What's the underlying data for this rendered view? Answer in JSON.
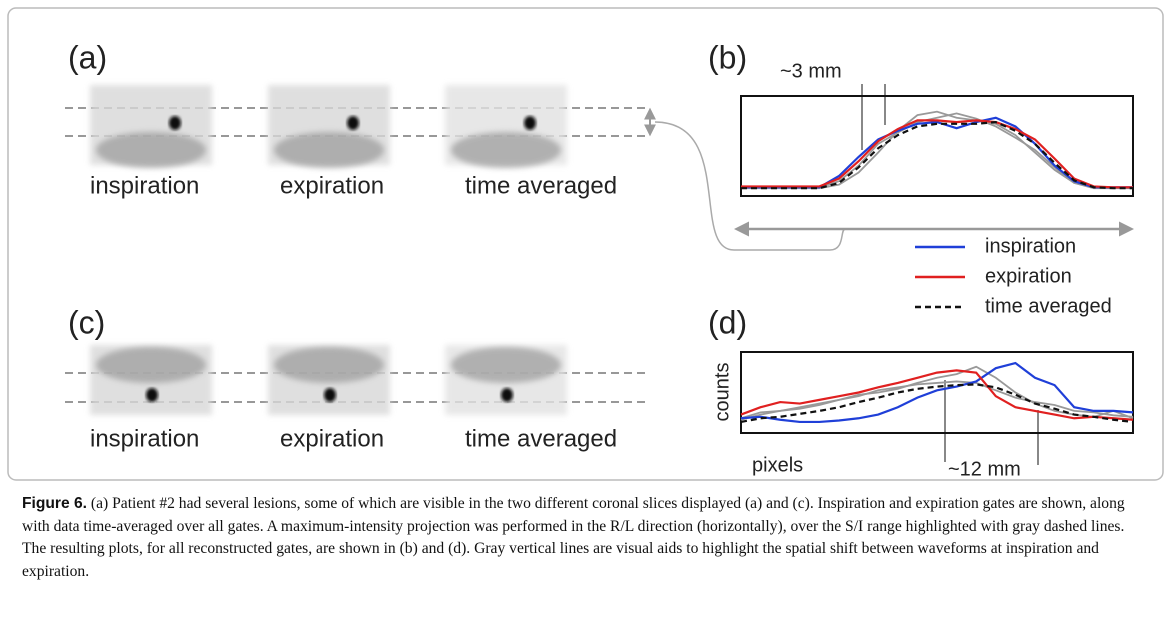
{
  "panels": [
    {
      "label": "(a)",
      "images": [
        "inspiration",
        "expiration",
        "time averaged"
      ]
    },
    {
      "label": "(c)",
      "images": [
        "inspiration",
        "expiration",
        "time averaged"
      ]
    }
  ],
  "chart_data": [
    {
      "type": "line",
      "title": "(b)",
      "annotation": "~3 mm",
      "x": [
        0,
        1,
        2,
        3,
        4,
        5,
        6,
        7,
        8,
        9,
        10,
        11,
        12,
        13,
        14,
        15,
        16,
        17,
        18,
        19,
        20
      ],
      "xlim": [
        0,
        20
      ],
      "ylim": [
        -5,
        110
      ],
      "series": [
        {
          "color": "#999999",
          "values": [
            4,
            4,
            4,
            4,
            4,
            8,
            22,
            45,
            70,
            88,
            92,
            85,
            82,
            78,
            65,
            45,
            25,
            10,
            4,
            4,
            4
          ]
        },
        {
          "color": "#999999",
          "values": [
            5,
            5,
            5,
            5,
            5,
            12,
            30,
            55,
            68,
            80,
            85,
            90,
            84,
            75,
            62,
            48,
            28,
            10,
            5,
            5,
            5
          ]
        },
        {
          "name": "inspiration",
          "color": "#1f3fd8",
          "values": [
            5,
            5,
            5,
            5,
            5,
            18,
            40,
            60,
            70,
            78,
            80,
            73,
            80,
            85,
            75,
            55,
            30,
            12,
            5,
            5,
            5
          ]
        },
        {
          "name": "expiration",
          "color": "#e02020",
          "values": [
            6,
            6,
            6,
            6,
            6,
            15,
            35,
            58,
            72,
            82,
            82,
            80,
            82,
            80,
            72,
            60,
            38,
            15,
            6,
            5,
            5
          ]
        },
        {
          "name": "time averaged",
          "color": "#111111",
          "dashed": true,
          "values": [
            4,
            4,
            4,
            4,
            4,
            10,
            28,
            50,
            65,
            75,
            78,
            78,
            78,
            80,
            70,
            55,
            33,
            13,
            5,
            4,
            4
          ]
        }
      ]
    },
    {
      "type": "line",
      "title": "(d)",
      "ylabel": "counts",
      "xlabel": "pixels",
      "annotation": "~12 mm",
      "x": [
        0,
        1,
        2,
        3,
        4,
        5,
        6,
        7,
        8,
        9,
        10,
        11,
        12,
        13,
        14,
        15,
        16,
        17,
        18,
        19,
        20
      ],
      "xlim": [
        0,
        20
      ],
      "ylim": [
        0,
        110
      ],
      "series": [
        {
          "color": "#999999",
          "values": [
            18,
            25,
            30,
            35,
            40,
            45,
            52,
            55,
            60,
            68,
            75,
            80,
            90,
            75,
            55,
            40,
            30,
            25,
            22,
            30,
            20
          ]
        },
        {
          "color": "#999999",
          "values": [
            20,
            28,
            30,
            33,
            38,
            45,
            50,
            58,
            62,
            66,
            68,
            70,
            68,
            58,
            48,
            42,
            38,
            30,
            28,
            24,
            22
          ]
        },
        {
          "color": "#1f3fd8",
          "values": [
            20,
            22,
            18,
            15,
            15,
            17,
            20,
            25,
            35,
            48,
            58,
            63,
            70,
            88,
            95,
            75,
            65,
            35,
            30,
            30,
            28
          ]
        },
        {
          "color": "#e02020",
          "values": [
            25,
            35,
            42,
            40,
            45,
            50,
            55,
            62,
            68,
            75,
            82,
            85,
            82,
            50,
            35,
            30,
            25,
            20,
            22,
            20,
            18
          ]
        },
        {
          "color": "#111111",
          "dashed": true,
          "values": [
            15,
            20,
            22,
            26,
            30,
            35,
            42,
            48,
            55,
            60,
            63,
            65,
            66,
            62,
            52,
            40,
            33,
            25,
            22,
            18,
            15
          ]
        }
      ]
    }
  ],
  "caption": {
    "label": "Figure 6.",
    "text": "(a) Patient #2 had several lesions, some of which are visible in the two different coronal slices displayed (a) and (c). Inspiration and expiration gates are shown, along with data time-averaged over all gates. A maximum-intensity projection was performed in the R/L direction (horizontally), over the S/I range highlighted with gray dashed lines. The resulting plots, for all reconstructed gates, are shown in (b) and (d). Gray vertical lines are visual aids to highlight the spatial shift between waveforms at inspiration and expiration."
  }
}
